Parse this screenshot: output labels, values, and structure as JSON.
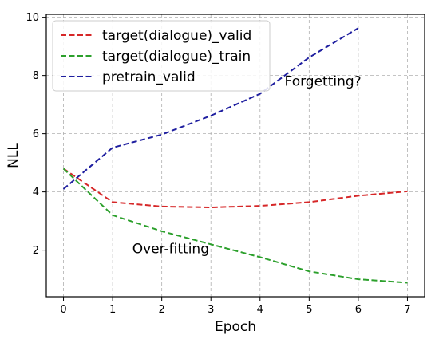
{
  "chart_data": {
    "type": "line",
    "title": "",
    "xlabel": "Epoch",
    "ylabel": "NLL",
    "xlim": [
      -0.35,
      7.35
    ],
    "ylim": [
      0.4,
      10.1
    ],
    "xticks": [
      0,
      1,
      2,
      3,
      4,
      5,
      6,
      7
    ],
    "yticks": [
      2,
      4,
      6,
      8,
      10
    ],
    "grid": true,
    "legend_position": "top-left",
    "series": [
      {
        "name": "target(dialogue)_valid",
        "color": "#d62728",
        "x": [
          0,
          1,
          2,
          3,
          4,
          5,
          6,
          7
        ],
        "y": [
          4.8,
          3.65,
          3.5,
          3.47,
          3.52,
          3.65,
          3.87,
          4.02
        ]
      },
      {
        "name": "target(dialogue)_train",
        "color": "#2ca02c",
        "x": [
          0,
          1,
          2,
          3,
          4,
          5,
          6,
          7
        ],
        "y": [
          4.8,
          3.2,
          2.65,
          2.2,
          1.76,
          1.27,
          1.0,
          0.88
        ]
      },
      {
        "name": "pretrain_valid",
        "color": "#1f1fa0",
        "x": [
          0,
          1,
          2,
          3,
          4,
          5,
          6
        ],
        "y": [
          4.1,
          5.52,
          5.97,
          6.62,
          7.37,
          8.62,
          9.63
        ]
      }
    ],
    "annotations": [
      {
        "text": "Forgetting?",
        "x": 4.5,
        "y": 7.65
      },
      {
        "text": "Over-fitting",
        "x": 1.4,
        "y": 1.9
      }
    ]
  }
}
